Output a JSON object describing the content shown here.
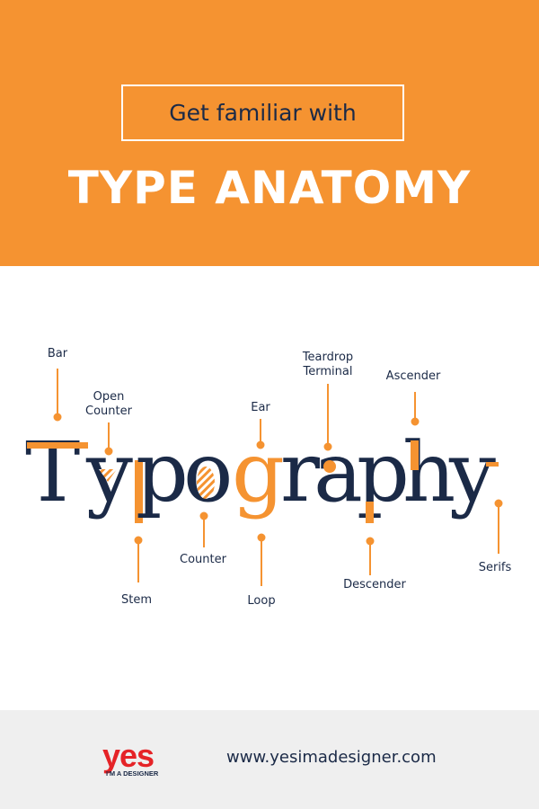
{
  "header": {
    "subtitle": "Get familiar with",
    "title": "TYPE ANATOMY"
  },
  "diagram": {
    "word": "Typography",
    "labels": {
      "bar": "Bar",
      "open_counter_line1": "Open",
      "open_counter_line2": "Counter",
      "ear": "Ear",
      "teardrop_terminal_line1": "Teardrop",
      "teardrop_terminal_line2": "Terminal",
      "ascender": "Ascender",
      "stem": "Stem",
      "counter": "Counter",
      "loop": "Loop",
      "descender": "Descender",
      "serifs": "Serifs"
    }
  },
  "footer": {
    "logo_word": "yes",
    "logo_tagline": "I'M A DESIGNER",
    "url": "www.yesimadesigner.com"
  },
  "colors": {
    "orange": "#f59331",
    "navy": "#1b2a47",
    "white": "#ffffff",
    "footer_bg": "#efefef",
    "logo_red": "#e52327"
  }
}
